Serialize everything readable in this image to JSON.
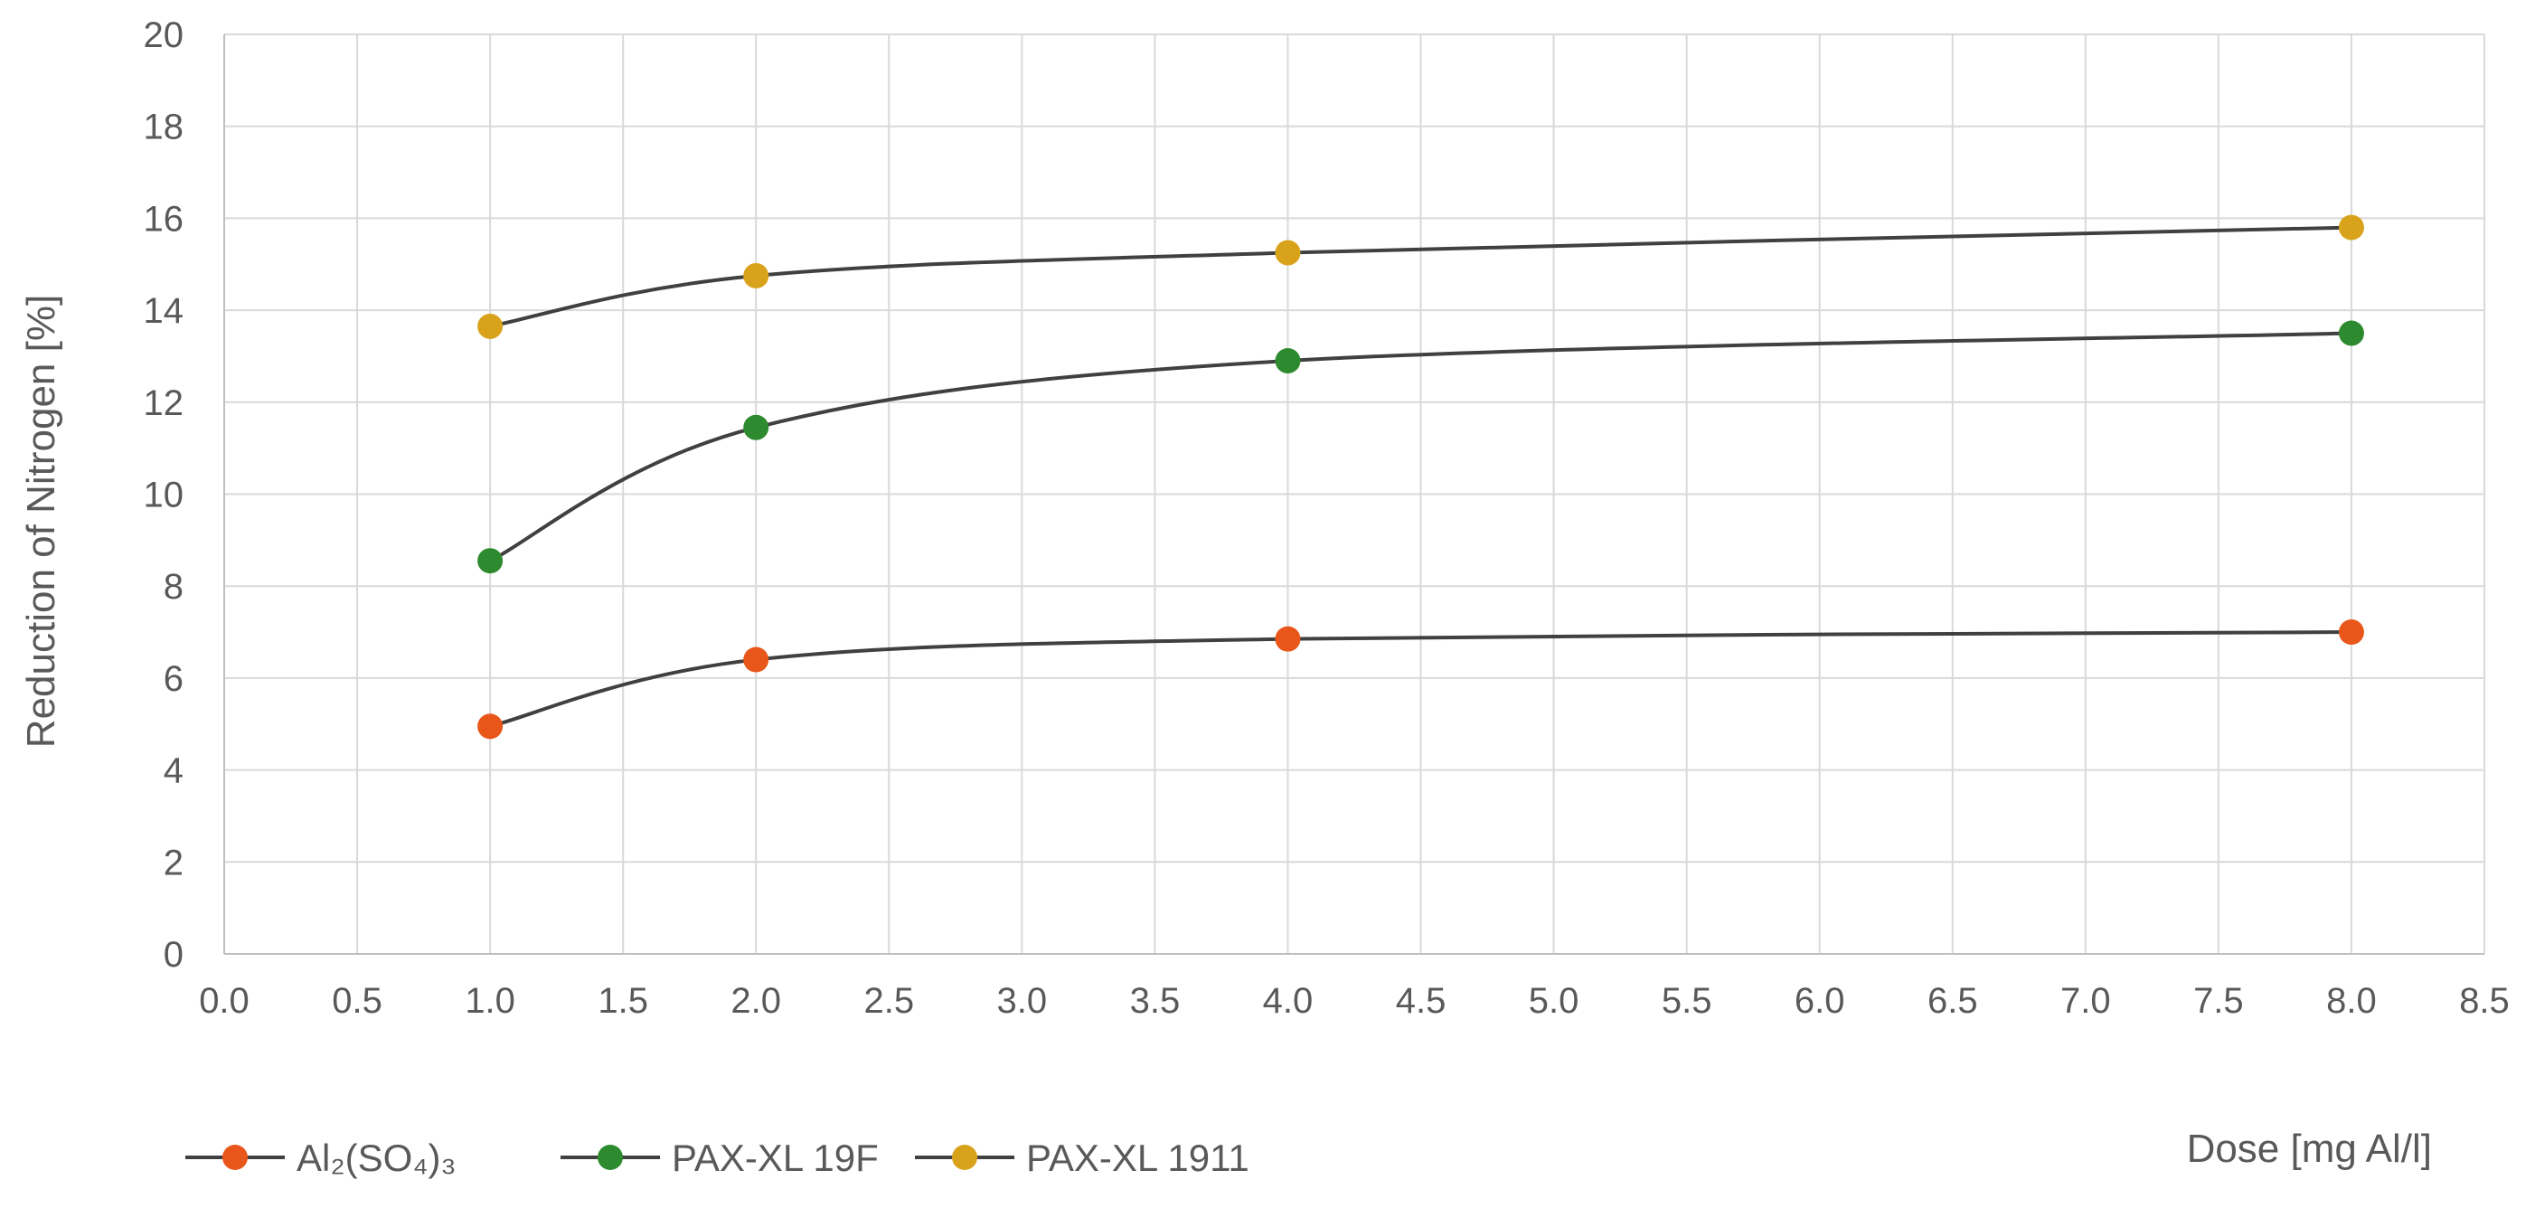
{
  "chart_data": {
    "type": "line",
    "title": "",
    "xlabel": "Dose [mg Al/l]",
    "ylabel": "Reduction of Nitrogen  [%]",
    "xlim": [
      0,
      8.5
    ],
    "ylim": [
      0,
      20
    ],
    "x_ticks": [
      "0.0",
      "0.5",
      "1.0",
      "1.5",
      "2.0",
      "2.5",
      "3.0",
      "3.5",
      "4.0",
      "4.5",
      "5.0",
      "5.5",
      "6.0",
      "6.5",
      "7.0",
      "7.5",
      "8.0",
      "8.5"
    ],
    "y_ticks": [
      "0",
      "2",
      "4",
      "6",
      "8",
      "10",
      "12",
      "14",
      "16",
      "18",
      "20"
    ],
    "grid": true,
    "smooth": true,
    "legend_position": "bottom-left",
    "line_color": "#404040",
    "grid_color": "#d9d9d9",
    "x": [
      1,
      2,
      4,
      8
    ],
    "series": [
      {
        "name": "Al₂(SO₄)₃",
        "color": "#e8561a",
        "values": [
          4.95,
          6.4,
          6.85,
          7.0
        ]
      },
      {
        "name": "PAX-XL 19F",
        "color": "#2e8a2e",
        "values": [
          8.55,
          11.45,
          12.9,
          13.5
        ]
      },
      {
        "name": "PAX-XL 1911",
        "color": "#d9a21b",
        "values": [
          13.65,
          14.75,
          15.25,
          15.8
        ]
      }
    ]
  }
}
